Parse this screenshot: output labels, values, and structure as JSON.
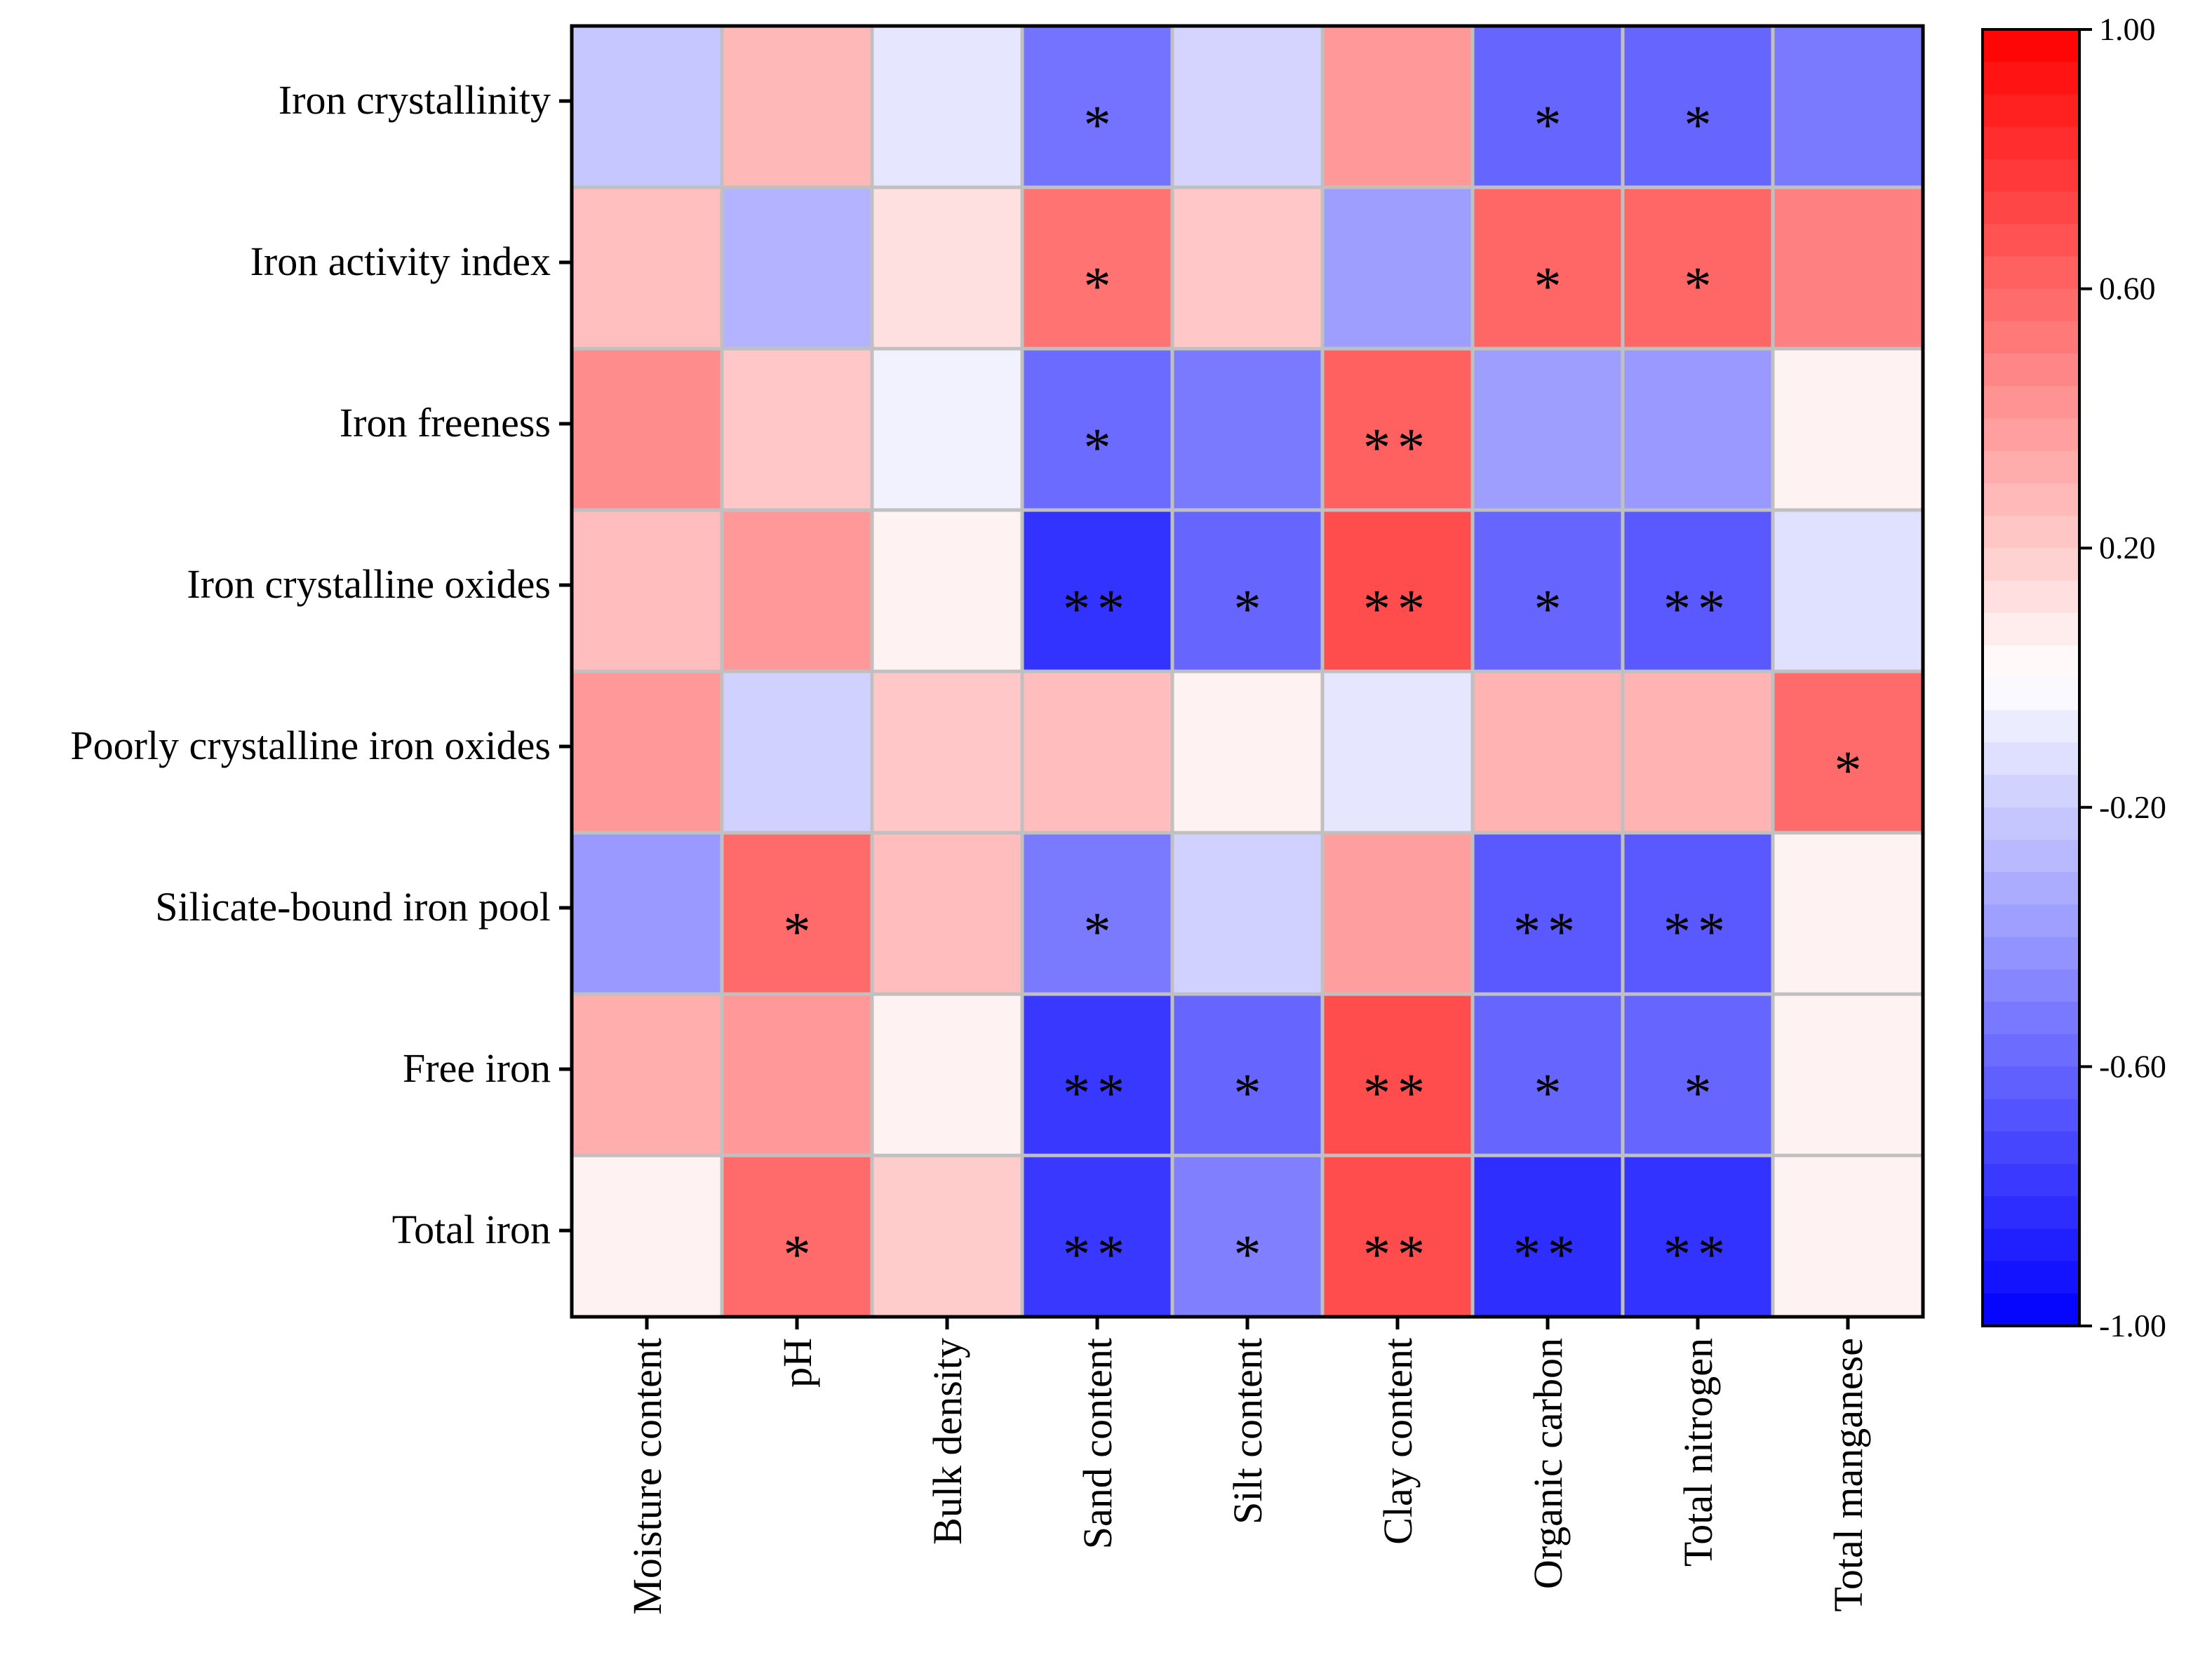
{
  "chart_data": {
    "type": "heatmap",
    "title": "",
    "xlabel": "",
    "ylabel": "",
    "rows": [
      "Iron crystallinity",
      "Iron activity index",
      "Iron freeness",
      "Iron crystalline oxides",
      "Poorly crystalline iron oxides",
      "Silicate-bound iron pool",
      "Free iron",
      "Total iron"
    ],
    "columns": [
      "Moisture content",
      "pH",
      "Bulk density",
      "Sand content",
      "Silt content",
      "Clay content",
      "Organic carbon",
      "Total nitrogen",
      "Total manganese"
    ],
    "values": [
      [
        -0.22,
        0.28,
        -0.1,
        -0.55,
        -0.17,
        0.4,
        -0.6,
        -0.6,
        -0.52
      ],
      [
        0.25,
        -0.3,
        0.12,
        0.55,
        0.22,
        -0.38,
        0.6,
        0.6,
        0.5
      ],
      [
        0.45,
        0.22,
        -0.05,
        -0.58,
        -0.52,
        0.62,
        -0.38,
        -0.4,
        0.05
      ],
      [
        0.26,
        0.4,
        0.05,
        -0.8,
        -0.6,
        0.7,
        -0.6,
        -0.65,
        -0.12
      ],
      [
        0.4,
        -0.18,
        0.22,
        0.26,
        0.05,
        -0.1,
        0.3,
        0.3,
        0.58
      ],
      [
        -0.4,
        0.58,
        0.26,
        -0.52,
        -0.18,
        0.38,
        -0.65,
        -0.65,
        0.05
      ],
      [
        0.32,
        0.4,
        0.05,
        -0.78,
        -0.6,
        0.7,
        -0.6,
        -0.6,
        0.05
      ],
      [
        0.05,
        0.58,
        0.2,
        -0.78,
        -0.5,
        0.7,
        -0.82,
        -0.8,
        0.05
      ]
    ],
    "significance": [
      [
        "",
        "",
        "",
        "*",
        "",
        "",
        "*",
        "*",
        ""
      ],
      [
        "",
        "",
        "",
        "*",
        "",
        "",
        "*",
        "*",
        ""
      ],
      [
        "",
        "",
        "",
        "*",
        "",
        "**",
        "",
        "",
        ""
      ],
      [
        "",
        "",
        "",
        "**",
        "*",
        "**",
        "*",
        "**",
        ""
      ],
      [
        "",
        "",
        "",
        "",
        "",
        "",
        "",
        "",
        "*"
      ],
      [
        "",
        "*",
        "",
        "*",
        "",
        "",
        "**",
        "**",
        ""
      ],
      [
        "",
        "",
        "",
        "**",
        "*",
        "**",
        "*",
        "*",
        ""
      ],
      [
        "",
        "*",
        "",
        "**",
        "*",
        "**",
        "**",
        "**",
        ""
      ]
    ],
    "colorscale": {
      "min": -1.0,
      "max": 1.0,
      "low_color": "#0000ff",
      "mid_color": "#ffffff",
      "high_color": "#ff0000",
      "tick_labels": [
        "1.00",
        "0.60",
        "0.20",
        "-0.20",
        "-0.60",
        "-1.00"
      ],
      "tick_values": [
        1.0,
        0.6,
        0.2,
        -0.2,
        -0.6,
        -1.0
      ],
      "steps": 40
    },
    "grid_color": "#c0c0c0",
    "legend": "right"
  }
}
